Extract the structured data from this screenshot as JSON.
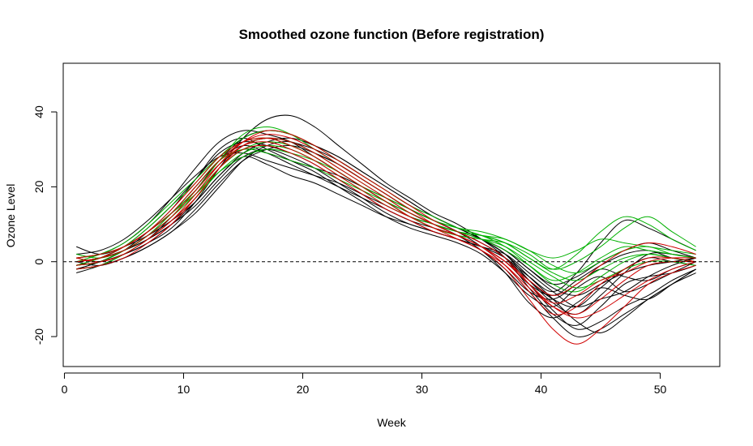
{
  "chart_data": {
    "type": "line",
    "title": "Smoothed ozone function (Before registration)",
    "xlabel": "Week",
    "ylabel": "Ozone Level",
    "xlim": [
      -0.1,
      55
    ],
    "ylim": [
      -28,
      53
    ],
    "x_ticks": [
      0,
      10,
      20,
      30,
      40,
      50
    ],
    "y_ticks": [
      -20,
      0,
      20,
      40
    ],
    "x_tick_labels": [
      "0",
      "10",
      "20",
      "30",
      "40",
      "50"
    ],
    "y_tick_labels": [
      "-20",
      "0",
      "20",
      "40"
    ],
    "reference_line": {
      "y": 0,
      "style": "dashed",
      "color": "#000000"
    },
    "grid": false,
    "legend": "none",
    "colors": {
      "black": "#000000",
      "green": "#00b000",
      "red": "#d00000"
    },
    "x": [
      1,
      3,
      5,
      7,
      9,
      11,
      13,
      15,
      17,
      19,
      21,
      23,
      25,
      27,
      29,
      31,
      33,
      35,
      37,
      39,
      41,
      43,
      45,
      47,
      49,
      51,
      53
    ],
    "series": [
      {
        "color": "black",
        "values": [
          -2,
          0,
          3,
          8,
          14,
          22,
          30,
          33,
          30,
          27,
          24,
          20,
          16,
          12,
          9,
          7,
          5,
          2,
          -3,
          -9,
          -12,
          -7,
          -4,
          -8,
          -6,
          -3,
          0
        ]
      },
      {
        "color": "black",
        "values": [
          0,
          1,
          4,
          9,
          15,
          22,
          29,
          32,
          31,
          29,
          26,
          22,
          18,
          14,
          11,
          8,
          6,
          3,
          -2,
          -8,
          -10,
          -6,
          -2,
          -4,
          -5,
          -2,
          0
        ]
      },
      {
        "color": "black",
        "values": [
          1,
          2,
          5,
          10,
          17,
          25,
          32,
          35,
          34,
          32,
          28,
          24,
          20,
          16,
          13,
          10,
          7,
          3,
          -3,
          -11,
          -15,
          -11,
          -7,
          -9,
          -10,
          -6,
          -2
        ]
      },
      {
        "color": "black",
        "values": [
          -3,
          -1,
          2,
          6,
          12,
          19,
          27,
          31,
          29,
          26,
          23,
          20,
          17,
          14,
          11,
          9,
          7,
          4,
          0,
          -6,
          -9,
          -5,
          -1,
          2,
          3,
          1,
          0
        ]
      },
      {
        "color": "black",
        "values": [
          4,
          2,
          4,
          7,
          11,
          16,
          23,
          28,
          26,
          23,
          21,
          18,
          15,
          12,
          10,
          8,
          6,
          4,
          2,
          -3,
          -8,
          -12,
          -10,
          -8,
          -4,
          -1,
          1
        ]
      },
      {
        "color": "black",
        "values": [
          0,
          1,
          3,
          7,
          13,
          20,
          27,
          33,
          35,
          34,
          31,
          28,
          24,
          20,
          16,
          12,
          9,
          6,
          2,
          -5,
          -11,
          -14,
          -9,
          -3,
          2,
          2,
          1
        ]
      },
      {
        "color": "black",
        "values": [
          -2,
          0,
          3,
          6,
          10,
          15,
          22,
          28,
          30,
          28,
          25,
          21,
          17,
          13,
          10,
          8,
          6,
          4,
          1,
          -4,
          -8,
          -3,
          5,
          11,
          9,
          6,
          3
        ]
      },
      {
        "color": "black",
        "values": [
          1,
          0,
          2,
          5,
          9,
          16,
          25,
          33,
          38,
          39,
          36,
          31,
          26,
          21,
          17,
          13,
          10,
          6,
          1,
          -7,
          -14,
          -17,
          -12,
          -6,
          -4,
          -3,
          -1
        ]
      },
      {
        "color": "black",
        "values": [
          -1,
          1,
          4,
          8,
          13,
          19,
          26,
          30,
          29,
          27,
          25,
          23,
          20,
          17,
          14,
          11,
          8,
          5,
          1,
          -5,
          -10,
          -12,
          -7,
          -2,
          1,
          0,
          -1
        ]
      },
      {
        "color": "black",
        "values": [
          0,
          -1,
          1,
          4,
          8,
          13,
          20,
          27,
          31,
          32,
          29,
          26,
          22,
          18,
          14,
          11,
          8,
          5,
          1,
          -6,
          -13,
          -18,
          -16,
          -12,
          -9,
          -5,
          -2
        ]
      },
      {
        "color": "black",
        "values": [
          2,
          3,
          6,
          11,
          17,
          23,
          28,
          29,
          27,
          25,
          23,
          21,
          18,
          15,
          12,
          10,
          8,
          6,
          3,
          -2,
          -7,
          -9,
          -6,
          -3,
          -1,
          0,
          1
        ]
      },
      {
        "color": "black",
        "values": [
          -1,
          0,
          2,
          5,
          10,
          17,
          25,
          31,
          33,
          32,
          30,
          27,
          23,
          19,
          15,
          12,
          9,
          6,
          2,
          -4,
          -10,
          -16,
          -19,
          -15,
          -10,
          -6,
          -2
        ]
      },
      {
        "color": "black",
        "values": [
          0,
          1,
          3,
          6,
          10,
          16,
          23,
          29,
          32,
          33,
          31,
          28,
          24,
          20,
          16,
          12,
          9,
          6,
          3,
          -2,
          -6,
          -4,
          0,
          3,
          5,
          3,
          1
        ]
      },
      {
        "color": "black",
        "values": [
          -2,
          -1,
          1,
          4,
          8,
          14,
          21,
          27,
          30,
          31,
          29,
          26,
          22,
          18,
          14,
          11,
          8,
          4,
          -1,
          -8,
          -15,
          -20,
          -18,
          -14,
          -10,
          -6,
          -3
        ]
      },
      {
        "color": "green",
        "values": [
          1,
          2,
          4,
          8,
          13,
          19,
          26,
          31,
          33,
          32,
          29,
          25,
          21,
          17,
          13,
          10,
          8,
          7,
          6,
          3,
          1,
          3,
          6,
          5,
          4,
          3,
          2
        ]
      },
      {
        "color": "green",
        "values": [
          -1,
          0,
          3,
          7,
          12,
          18,
          25,
          30,
          32,
          31,
          28,
          24,
          20,
          16,
          12,
          9,
          7,
          6,
          5,
          2,
          -2,
          0,
          4,
          9,
          12,
          8,
          4
        ]
      },
      {
        "color": "green",
        "values": [
          0,
          2,
          5,
          10,
          16,
          22,
          28,
          32,
          33,
          31,
          28,
          24,
          20,
          16,
          12,
          10,
          8,
          7,
          5,
          1,
          -3,
          -5,
          -2,
          1,
          2,
          1,
          0
        ]
      },
      {
        "color": "green",
        "values": [
          2,
          1,
          3,
          7,
          12,
          19,
          27,
          34,
          36,
          34,
          30,
          26,
          22,
          18,
          14,
          11,
          9,
          8,
          6,
          3,
          -1,
          -3,
          0,
          3,
          4,
          2,
          1
        ]
      },
      {
        "color": "green",
        "values": [
          -2,
          -1,
          2,
          6,
          11,
          17,
          24,
          29,
          31,
          30,
          27,
          23,
          19,
          15,
          12,
          9,
          7,
          6,
          4,
          0,
          -4,
          -7,
          -5,
          -2,
          0,
          0,
          -1
        ]
      },
      {
        "color": "green",
        "values": [
          1,
          2,
          4,
          8,
          13,
          18,
          24,
          28,
          30,
          29,
          27,
          24,
          20,
          17,
          14,
          11,
          9,
          7,
          5,
          1,
          -2,
          2,
          8,
          12,
          10,
          6,
          3
        ]
      },
      {
        "color": "green",
        "values": [
          0,
          1,
          3,
          7,
          13,
          20,
          27,
          30,
          29,
          27,
          25,
          22,
          19,
          16,
          13,
          10,
          8,
          6,
          3,
          -1,
          -5,
          -3,
          1,
          4,
          3,
          2,
          1
        ]
      },
      {
        "color": "green",
        "values": [
          -1,
          1,
          4,
          9,
          15,
          21,
          28,
          33,
          35,
          34,
          31,
          27,
          23,
          19,
          15,
          12,
          9,
          7,
          4,
          -1,
          -6,
          -8,
          -4,
          0,
          2,
          1,
          0
        ]
      },
      {
        "color": "red",
        "values": [
          0,
          1,
          3,
          7,
          12,
          19,
          26,
          31,
          32,
          30,
          27,
          23,
          19,
          15,
          12,
          9,
          7,
          4,
          0,
          -6,
          -11,
          -9,
          -5,
          -3,
          0,
          1,
          1
        ]
      },
      {
        "color": "red",
        "values": [
          -1,
          0,
          2,
          6,
          11,
          17,
          25,
          31,
          33,
          32,
          29,
          25,
          21,
          17,
          13,
          10,
          7,
          4,
          -1,
          -8,
          -14,
          -12,
          -6,
          -2,
          1,
          1,
          0
        ]
      },
      {
        "color": "red",
        "values": [
          1,
          2,
          4,
          8,
          14,
          21,
          28,
          32,
          33,
          31,
          28,
          24,
          20,
          16,
          12,
          9,
          6,
          3,
          -2,
          -10,
          -18,
          -22,
          -18,
          -12,
          -6,
          -3,
          -1
        ]
      },
      {
        "color": "red",
        "values": [
          -2,
          -1,
          1,
          5,
          10,
          17,
          25,
          30,
          31,
          29,
          26,
          22,
          18,
          14,
          11,
          8,
          6,
          3,
          -1,
          -7,
          -12,
          -14,
          -10,
          -5,
          -1,
          0,
          0
        ]
      },
      {
        "color": "red",
        "values": [
          0,
          1,
          4,
          8,
          13,
          20,
          27,
          32,
          34,
          33,
          30,
          26,
          22,
          18,
          14,
          10,
          7,
          4,
          0,
          -5,
          -9,
          -6,
          -1,
          3,
          5,
          4,
          2
        ]
      },
      {
        "color": "red",
        "values": [
          1,
          0,
          2,
          6,
          11,
          18,
          26,
          32,
          35,
          34,
          31,
          27,
          23,
          19,
          15,
          11,
          8,
          5,
          1,
          -6,
          -12,
          -15,
          -13,
          -9,
          -5,
          -2,
          0
        ]
      }
    ]
  }
}
